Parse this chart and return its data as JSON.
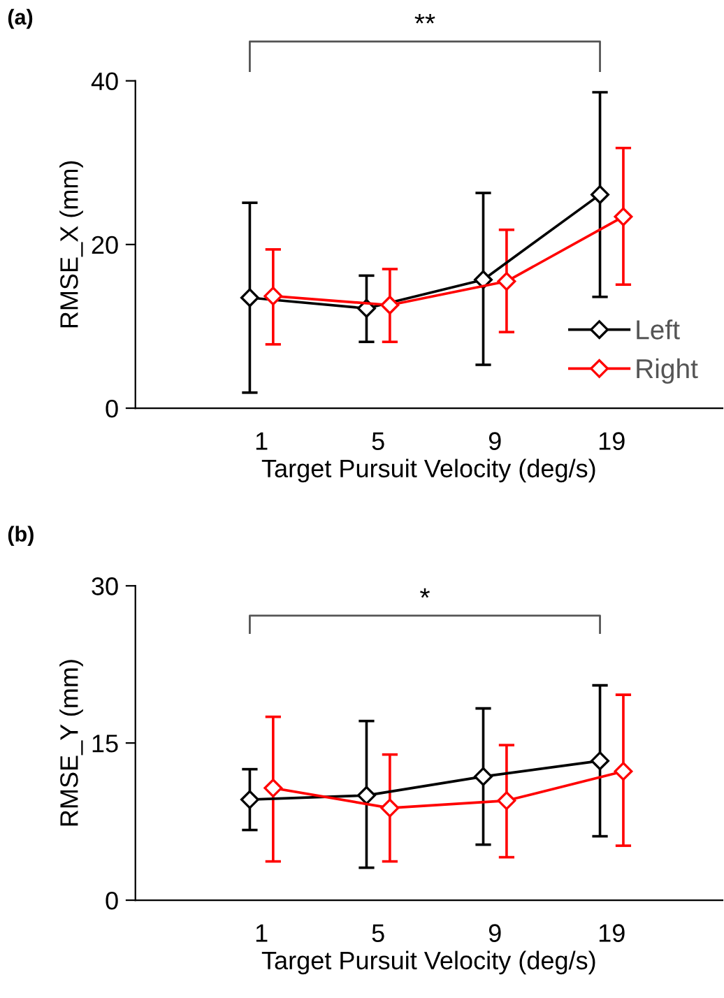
{
  "chart_data": [
    {
      "type": "line",
      "title": "(a)",
      "xlabel": "Target Pursuit Velocity (deg/s)",
      "ylabel": "RMSE_X (mm)",
      "categories": [
        "1",
        "5",
        "9",
        "19"
      ],
      "ylim": [
        0,
        40
      ],
      "yticks": [
        0,
        20,
        40
      ],
      "grid": false,
      "legend": "bottom right",
      "marker": "diamond",
      "line_style": "solid",
      "annotations": [
        "**"
      ],
      "series": [
        {
          "name": "Left",
          "color": "#000000",
          "values": [
            13.5,
            12.2,
            15.7,
            26.1
          ],
          "errors": [
            [
              1.9,
              25.1
            ],
            [
              8.1,
              16.2
            ],
            [
              5.3,
              26.3
            ],
            [
              13.6,
              38.6
            ]
          ]
        },
        {
          "name": "Right",
          "color": "#ff0000",
          "values": [
            13.7,
            12.6,
            15.5,
            23.4
          ],
          "errors": [
            [
              7.8,
              19.4
            ],
            [
              8.1,
              17.0
            ],
            [
              9.3,
              21.8
            ],
            [
              15.1,
              31.8
            ]
          ]
        }
      ]
    },
    {
      "type": "line",
      "title": "(b)",
      "xlabel": "Target Pursuit Velocity (deg/s)",
      "ylabel": "RMSE_Y (mm)",
      "categories": [
        "1",
        "5",
        "9",
        "19"
      ],
      "ylim": [
        0,
        30
      ],
      "yticks": [
        0,
        15,
        30
      ],
      "grid": false,
      "marker": "diamond",
      "line_style": "solid",
      "annotations": [
        "*"
      ],
      "series": [
        {
          "color": "#000000",
          "values": [
            9.6,
            10.0,
            11.8,
            13.3
          ],
          "errors": [
            [
              6.7,
              12.5
            ],
            [
              3.1,
              17.1
            ],
            [
              5.3,
              18.3
            ],
            [
              6.1,
              20.5
            ]
          ]
        },
        {
          "color": "#ff0000",
          "values": [
            10.7,
            8.8,
            9.5,
            12.3
          ],
          "errors": [
            [
              3.7,
              17.5
            ],
            [
              3.7,
              13.9
            ],
            [
              4.1,
              14.8
            ],
            [
              5.2,
              19.6
            ]
          ]
        }
      ]
    }
  ]
}
